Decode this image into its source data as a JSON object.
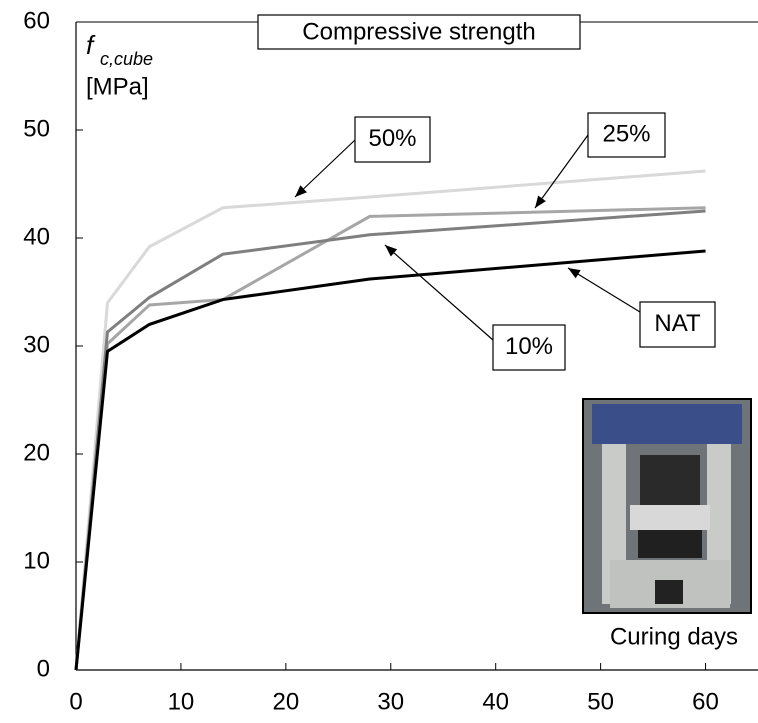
{
  "chart_data": {
    "type": "line",
    "title": "Compressive strength",
    "ylabel": {
      "symbol": "f",
      "subscript": "c,cube",
      "unit": "[MPa]"
    },
    "xlabel": "Curing days",
    "x": [
      0,
      3,
      7,
      14,
      28,
      60
    ],
    "series": [
      {
        "name": "NAT",
        "color": "#000000",
        "values": [
          0,
          29.5,
          32,
          34.3,
          36.2,
          38.8
        ]
      },
      {
        "name": "10%",
        "color": "#a6a6a6",
        "values": [
          0,
          30.2,
          33.8,
          34.3,
          42,
          42.8
        ]
      },
      {
        "name": "25%",
        "color": "#7f7f7f",
        "values": [
          0,
          31.3,
          34.5,
          38.5,
          40.3,
          42.5
        ]
      },
      {
        "name": "50%",
        "color": "#d9d9d9",
        "values": [
          0,
          34,
          39.2,
          42.8,
          43.8,
          46.2
        ]
      }
    ],
    "xlim": [
      0,
      65
    ],
    "ylim": [
      0,
      60
    ],
    "xticks": [
      0,
      10,
      20,
      30,
      40,
      50,
      60
    ],
    "yticks": [
      0,
      10,
      20,
      30,
      40,
      50,
      60
    ]
  }
}
